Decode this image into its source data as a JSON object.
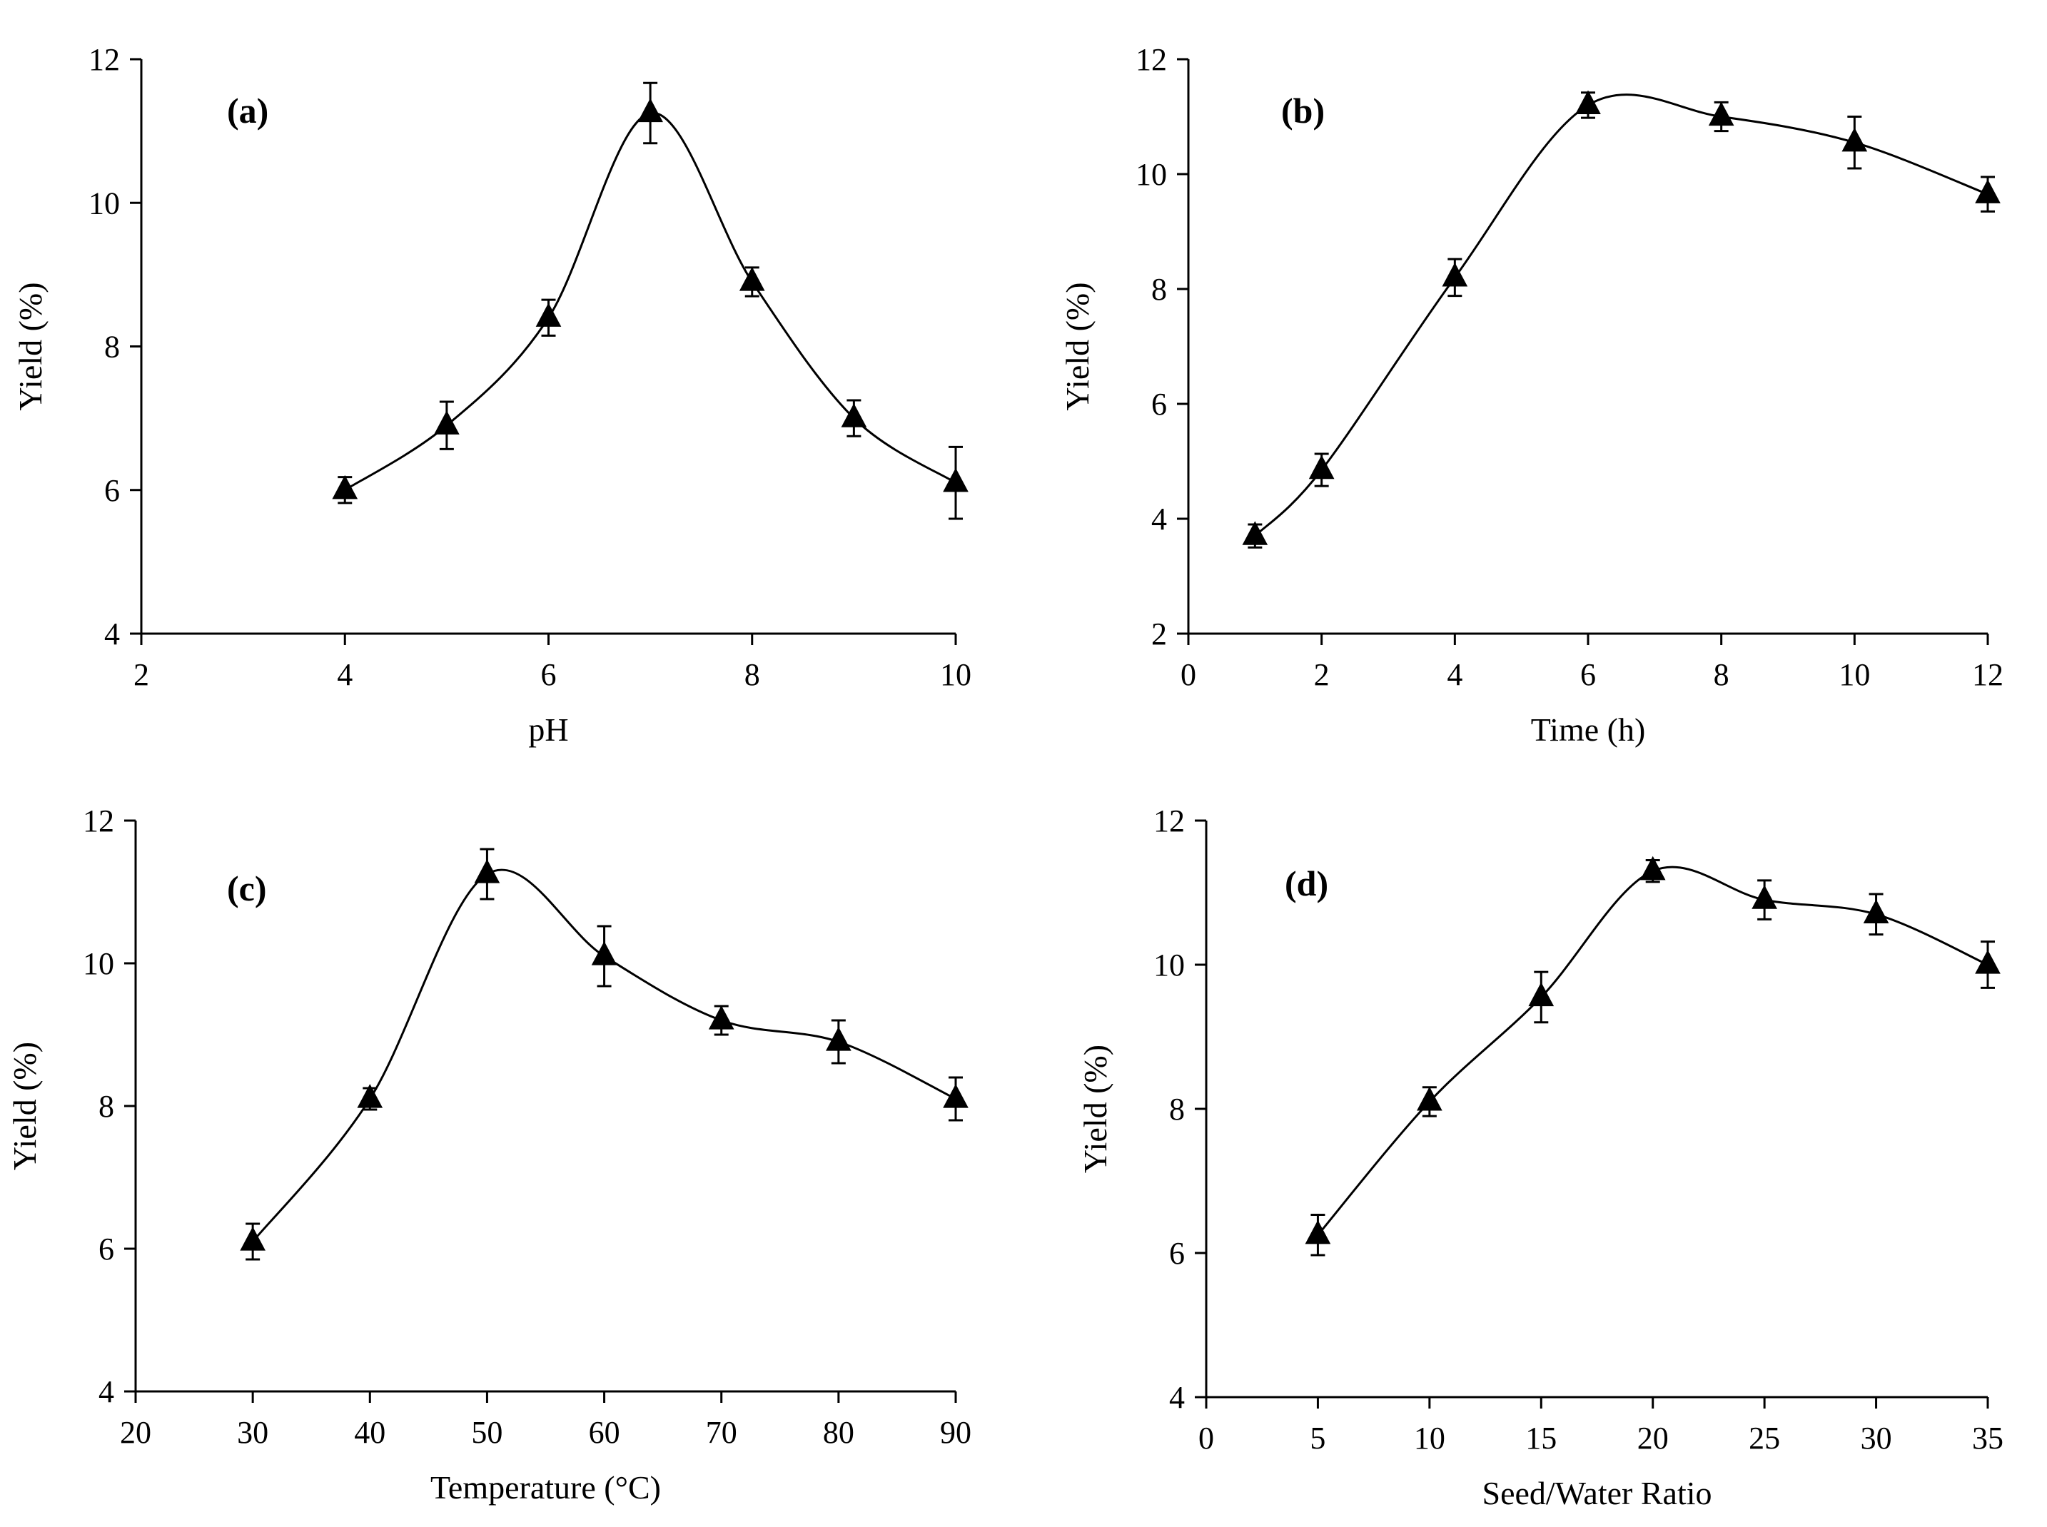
{
  "chart_data": [
    {
      "type": "line",
      "panel_label": "(a)",
      "xlabel": "pH",
      "ylabel": "Yield (%)",
      "xlim": [
        2,
        10
      ],
      "ylim": [
        4,
        12
      ],
      "xticks": [
        2,
        4,
        6,
        8,
        10
      ],
      "yticks": [
        4,
        6,
        8,
        10,
        12
      ],
      "marker": "triangle",
      "smooth": true,
      "series": [
        {
          "name": "Yield",
          "x": [
            4,
            5,
            6,
            7,
            8,
            9,
            10
          ],
          "y": [
            6.0,
            6.9,
            8.4,
            11.25,
            8.9,
            7.0,
            6.1
          ],
          "err": [
            0.18,
            0.33,
            0.25,
            0.42,
            0.2,
            0.25,
            0.5
          ]
        }
      ]
    },
    {
      "type": "line",
      "panel_label": "(b)",
      "xlabel": "Time (h)",
      "ylabel": "Yield (%)",
      "xlim": [
        0,
        12
      ],
      "ylim": [
        2,
        12
      ],
      "xticks": [
        0,
        2,
        4,
        6,
        8,
        10,
        12
      ],
      "yticks": [
        2,
        4,
        6,
        8,
        10,
        12
      ],
      "marker": "triangle",
      "smooth": true,
      "series": [
        {
          "name": "Yield",
          "x": [
            1,
            2,
            4,
            6,
            8,
            10,
            12
          ],
          "y": [
            3.7,
            4.85,
            8.2,
            11.2,
            11.0,
            10.55,
            9.65
          ],
          "err": [
            0.2,
            0.28,
            0.32,
            0.22,
            0.25,
            0.45,
            0.3
          ]
        }
      ]
    },
    {
      "type": "line",
      "panel_label": "(c)",
      "xlabel": "Temperature (°C)",
      "ylabel": "Yield (%)",
      "xlim": [
        20,
        90
      ],
      "ylim": [
        4,
        12
      ],
      "xticks": [
        20,
        30,
        40,
        50,
        60,
        70,
        80,
        90
      ],
      "yticks": [
        4,
        6,
        8,
        10,
        12
      ],
      "marker": "triangle",
      "smooth": true,
      "series": [
        {
          "name": "Yield",
          "x": [
            30,
            40,
            50,
            60,
            70,
            80,
            90
          ],
          "y": [
            6.1,
            8.1,
            11.25,
            10.1,
            9.2,
            8.9,
            8.1
          ],
          "err": [
            0.25,
            0.15,
            0.35,
            0.42,
            0.2,
            0.3,
            0.3
          ]
        }
      ]
    },
    {
      "type": "line",
      "panel_label": "(d)",
      "xlabel": "Seed/Water Ratio",
      "ylabel": "Yield (%)",
      "xlim": [
        0,
        35
      ],
      "ylim": [
        4,
        12
      ],
      "xticks": [
        0,
        5,
        10,
        15,
        20,
        25,
        30,
        35
      ],
      "yticks": [
        4,
        6,
        8,
        10,
        12
      ],
      "marker": "triangle",
      "smooth": true,
      "series": [
        {
          "name": "Yield",
          "x": [
            5,
            10,
            15,
            20,
            25,
            30,
            35
          ],
          "y": [
            6.25,
            8.1,
            9.55,
            11.3,
            10.9,
            10.7,
            10.0
          ],
          "err": [
            0.28,
            0.2,
            0.35,
            0.15,
            0.27,
            0.28,
            0.32
          ]
        }
      ]
    }
  ]
}
